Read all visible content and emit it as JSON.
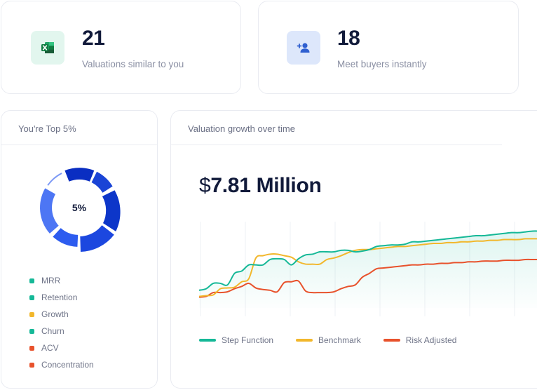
{
  "stats": [
    {
      "value": "21",
      "label": "Valuations similar to you",
      "icon": "spreadsheet-icon",
      "icon_bg": "#e2f6ee",
      "icon_color": "#1b8a4c"
    },
    {
      "value": "18",
      "label": "Meet buyers instantly",
      "icon": "add-user-icon",
      "icon_bg": "#dde7fb",
      "icon_color": "#2f5fd0"
    }
  ],
  "top_panel": {
    "title": "You're Top 5%",
    "donut_label": "5%",
    "legend": [
      {
        "label": "MRR",
        "color": "#15b897"
      },
      {
        "label": "Retention",
        "color": "#15b897"
      },
      {
        "label": "Growth",
        "color": "#f2b72c"
      },
      {
        "label": "Churn",
        "color": "#15b897"
      },
      {
        "label": "ACV",
        "color": "#e8522c"
      },
      {
        "label": "Concentration",
        "color": "#e8522c"
      }
    ]
  },
  "growth_panel": {
    "title": "Valuation growth over time",
    "currency": "$",
    "amount": "7.81 Million"
  },
  "chart_data": {
    "type": "line",
    "x": [
      0,
      1,
      2,
      3,
      4,
      5,
      6,
      7,
      8,
      9,
      10,
      11,
      12,
      13,
      14,
      15,
      16,
      17,
      18,
      19,
      20,
      21,
      22,
      23,
      24,
      25,
      26,
      27,
      28,
      29,
      30,
      31,
      32,
      33,
      34,
      35,
      36,
      37,
      38,
      39,
      40,
      41,
      42,
      43,
      44,
      45,
      46,
      47,
      48
    ],
    "series": [
      {
        "name": "Step Function",
        "color": "#15b897",
        "values": [
          2.3,
          2.5,
          3.2,
          3.2,
          3.0,
          4.5,
          4.8,
          5.6,
          5.6,
          5.6,
          6.3,
          6.4,
          6.3,
          5.6,
          6.4,
          6.9,
          7.0,
          7.3,
          7.3,
          7.3,
          7.5,
          7.5,
          7.3,
          7.4,
          7.6,
          8.0,
          8.1,
          8.2,
          8.2,
          8.3,
          8.6,
          8.6,
          8.7,
          8.8,
          8.9,
          9.0,
          9.1,
          9.2,
          9.3,
          9.4,
          9.4,
          9.5,
          9.6,
          9.7,
          9.8,
          9.8,
          9.9,
          10.0,
          10.0
        ],
        "smoothed": true
      },
      {
        "name": "Benchmark",
        "color": "#f2b72c",
        "values": [
          1.5,
          1.6,
          1.7,
          2.5,
          2.6,
          2.7,
          3.4,
          3.8,
          6.5,
          6.8,
          7.0,
          7.0,
          6.8,
          6.6,
          6.0,
          5.7,
          5.7,
          5.7,
          6.3,
          6.5,
          6.8,
          7.2,
          7.5,
          7.6,
          7.6,
          7.7,
          7.8,
          7.9,
          8.0,
          8.0,
          8.1,
          8.2,
          8.3,
          8.4,
          8.4,
          8.5,
          8.5,
          8.6,
          8.6,
          8.7,
          8.7,
          8.8,
          8.8,
          8.9,
          8.9,
          8.9,
          9.0,
          9.0,
          9.0
        ],
        "smoothed": true
      },
      {
        "name": "Risk Adjusted",
        "color": "#e8522c",
        "values": [
          1.4,
          1.5,
          2.0,
          2.0,
          2.1,
          2.5,
          2.8,
          3.2,
          2.6,
          2.4,
          2.3,
          2.1,
          3.3,
          3.4,
          3.5,
          2.2,
          2.0,
          2.0,
          2.0,
          2.1,
          2.5,
          2.8,
          3.0,
          4.0,
          4.5,
          5.1,
          5.2,
          5.3,
          5.4,
          5.5,
          5.6,
          5.6,
          5.7,
          5.7,
          5.8,
          5.8,
          5.9,
          5.9,
          6.0,
          6.0,
          6.1,
          6.1,
          6.1,
          6.2,
          6.2,
          6.2,
          6.3,
          6.3,
          6.3
        ],
        "smoothed": true
      }
    ]
  }
}
